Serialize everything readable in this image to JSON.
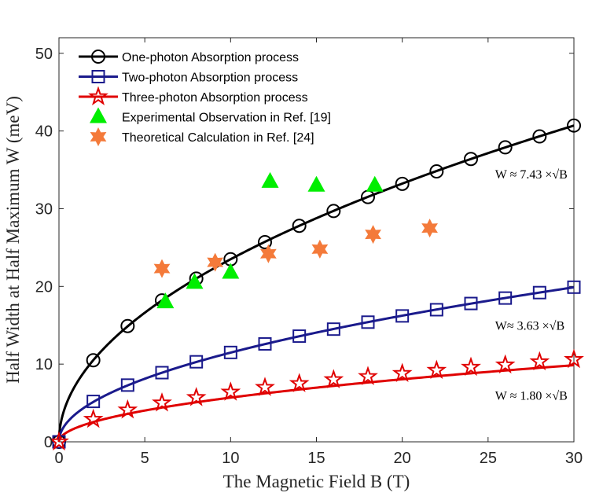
{
  "chart_data": {
    "type": "scatter",
    "title": "",
    "xlabel": "The Magnetic Field B (T)",
    "ylabel": "Half Width at Half Maximum W (meV)",
    "xlim": [
      0,
      30
    ],
    "ylim": [
      0,
      52
    ],
    "xticks": [
      "0",
      "5",
      "10",
      "15",
      "20",
      "25",
      "30"
    ],
    "yticks": [
      "0",
      "10",
      "20",
      "30",
      "40",
      "50"
    ],
    "x_tick_values": [
      0,
      5,
      10,
      15,
      20,
      25,
      30
    ],
    "y_tick_values": [
      0,
      10,
      20,
      30,
      40,
      50
    ],
    "legend_position": "top-left",
    "series": [
      {
        "name": "One-photon Absorption process",
        "marker": "circle",
        "color": "#000000",
        "fit_coefficient": 7.43,
        "x": [
          0,
          2,
          4,
          6,
          8,
          10,
          12,
          14,
          16,
          18,
          20,
          22,
          24,
          26,
          28,
          30
        ],
        "y": [
          0,
          10.5,
          14.9,
          18.2,
          21.0,
          23.5,
          25.7,
          27.8,
          29.7,
          31.5,
          33.2,
          34.8,
          36.4,
          37.9,
          39.3,
          40.7
        ]
      },
      {
        "name": "Two-photon Absorption process",
        "marker": "square",
        "color": "#1a1a8c",
        "fit_coefficient": 3.63,
        "x": [
          0,
          2,
          4,
          6,
          8,
          10,
          12,
          14,
          16,
          18,
          20,
          22,
          24,
          26,
          28,
          30
        ],
        "y": [
          0,
          5.2,
          7.3,
          8.9,
          10.3,
          11.5,
          12.6,
          13.6,
          14.5,
          15.4,
          16.2,
          17.0,
          17.8,
          18.5,
          19.2,
          19.9
        ]
      },
      {
        "name": "Three-photon Absorption process",
        "marker": "star5",
        "color": "#e00000",
        "fit_coefficient": 1.8,
        "x": [
          0,
          2,
          4,
          6,
          8,
          10,
          12,
          14,
          16,
          18,
          20,
          22,
          24,
          26,
          28,
          30
        ],
        "y": [
          0,
          2.9,
          4.1,
          5.0,
          5.7,
          6.4,
          7.0,
          7.5,
          8.0,
          8.4,
          8.8,
          9.2,
          9.6,
          9.9,
          10.3,
          10.6
        ]
      },
      {
        "name": "Experimental Observation in Ref. [19]",
        "marker": "triangle",
        "color": "#00ee00",
        "x": [
          6.2,
          7.9,
          10.0,
          12.3,
          15.0,
          18.4
        ],
        "y": [
          18.0,
          20.5,
          21.8,
          33.5,
          33.0,
          33.0
        ]
      },
      {
        "name": "Theoretical Calculation in Ref. [24]",
        "marker": "star6",
        "color": "#f47a3a",
        "x": [
          6.0,
          9.1,
          12.2,
          15.2,
          18.3,
          21.6
        ],
        "y": [
          22.3,
          23.1,
          24.2,
          24.8,
          26.7,
          27.5
        ]
      }
    ],
    "annotations": [
      {
        "text": "W ≈ 7.43 ×√B",
        "x": 25.5,
        "y": 34.5
      },
      {
        "text": "W≈ 3.63 ×√B",
        "x": 25.5,
        "y": 15.0
      },
      {
        "text": "W ≈ 1.80 ×√B",
        "x": 25.5,
        "y": 6.0
      }
    ]
  }
}
